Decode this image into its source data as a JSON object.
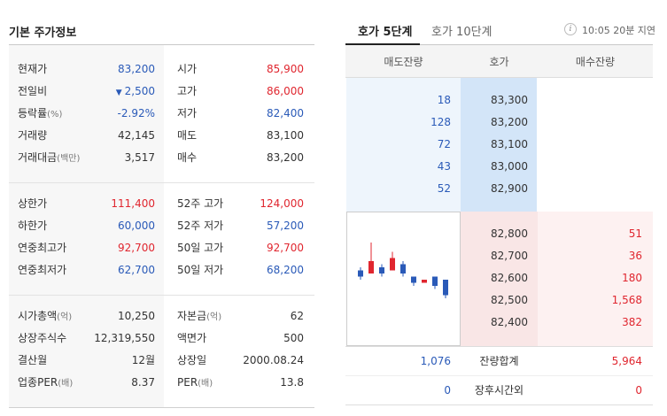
{
  "left": {
    "title": "기본 주가정보",
    "section1": [
      {
        "l1": "현재가",
        "v1": "83,200",
        "c1": "blue",
        "l2": "시가",
        "v2": "85,900",
        "c2": "red"
      },
      {
        "l1": "전일비",
        "v1": "2,500",
        "c1": "blue",
        "tri": "▼",
        "l2": "고가",
        "v2": "86,000",
        "c2": "red"
      },
      {
        "l1": "등락률",
        "l1s": "(%)",
        "v1": "-2.92%",
        "c1": "blue",
        "l2": "저가",
        "v2": "82,400",
        "c2": "blue"
      },
      {
        "l1": "거래량",
        "v1": "42,145",
        "c1": "dark",
        "l2": "매도",
        "v2": "83,100",
        "c2": "dark"
      },
      {
        "l1": "거래대금",
        "l1s": "(백만)",
        "v1": "3,517",
        "c1": "dark",
        "l2": "매수",
        "v2": "83,200",
        "c2": "dark"
      }
    ],
    "section2": [
      {
        "l1": "상한가",
        "v1": "111,400",
        "c1": "red",
        "l2": "52주 고가",
        "v2": "124,000",
        "c2": "red"
      },
      {
        "l1": "하한가",
        "v1": "60,000",
        "c1": "blue",
        "l2": "52주 저가",
        "v2": "57,200",
        "c2": "blue"
      },
      {
        "l1": "연중최고가",
        "v1": "92,700",
        "c1": "red",
        "l2": "50일 고가",
        "v2": "92,700",
        "c2": "red"
      },
      {
        "l1": "연중최저가",
        "v1": "62,700",
        "c1": "blue",
        "l2": "50일 저가",
        "v2": "68,200",
        "c2": "blue"
      }
    ],
    "section3": [
      {
        "l1": "시가총액",
        "l1s": "(억)",
        "v1": "10,250",
        "c1": "dark",
        "l2": "자본금",
        "l2s": "(억)",
        "v2": "62",
        "c2": "dark"
      },
      {
        "l1": "상장주식수",
        "v1": "12,319,550",
        "c1": "dark",
        "l2": "액면가",
        "v2": "500",
        "c2": "dark"
      },
      {
        "l1": "결산월",
        "v1": "12월",
        "c1": "dark",
        "l2": "상장일",
        "v2": "2000.08.24",
        "c2": "dark"
      },
      {
        "l1": "업종PER",
        "l1s": "(배)",
        "v1": "8.37",
        "c1": "dark",
        "l2": "PER",
        "l2s": "(배)",
        "v2": "13.8",
        "c2": "dark"
      }
    ]
  },
  "right": {
    "tabs": [
      "호가 5단계",
      "호가 10단계"
    ],
    "info_icon": "i",
    "delay_text": "10:05 20분 지연",
    "headers": [
      "매도잔량",
      "호가",
      "매수잔량"
    ],
    "asks": [
      {
        "qty": "18",
        "price": "83,300"
      },
      {
        "qty": "128",
        "price": "83,200"
      },
      {
        "qty": "72",
        "price": "83,100"
      },
      {
        "qty": "43",
        "price": "83,000"
      },
      {
        "qty": "52",
        "price": "82,900"
      }
    ],
    "bids": [
      {
        "price": "82,800",
        "qty": "51"
      },
      {
        "price": "82,700",
        "qty": "36"
      },
      {
        "price": "82,600",
        "qty": "180"
      },
      {
        "price": "82,500",
        "qty": "1,568"
      },
      {
        "price": "82,400",
        "qty": "382"
      }
    ],
    "total": {
      "ask": "1,076",
      "label": "잔량합계",
      "bid": "5,964"
    },
    "after_hours": {
      "ask": "0",
      "label": "장후시간외",
      "bid": "0"
    },
    "colors": {
      "up": "#e0262f",
      "down": "#2a5ab8"
    },
    "mini_chart": {
      "type": "candlestick",
      "candles": [
        {
          "open": 3,
          "close": 1,
          "high": 4,
          "low": 0
        },
        {
          "open": 2,
          "close": 6,
          "high": 12,
          "low": 2
        },
        {
          "open": 4,
          "close": 2,
          "high": 5,
          "low": 1
        },
        {
          "open": 3,
          "close": 7,
          "high": 9,
          "low": 3
        },
        {
          "open": 5,
          "close": 2,
          "high": 6,
          "low": 1
        },
        {
          "open": 1,
          "close": -1,
          "high": 1,
          "low": -2
        },
        {
          "open": -1,
          "close": 0,
          "high": 0,
          "low": -1
        },
        {
          "open": 1,
          "close": -2,
          "high": 1,
          "low": -3
        },
        {
          "open": 0,
          "close": -5,
          "high": 0,
          "low": -6
        }
      ]
    }
  }
}
